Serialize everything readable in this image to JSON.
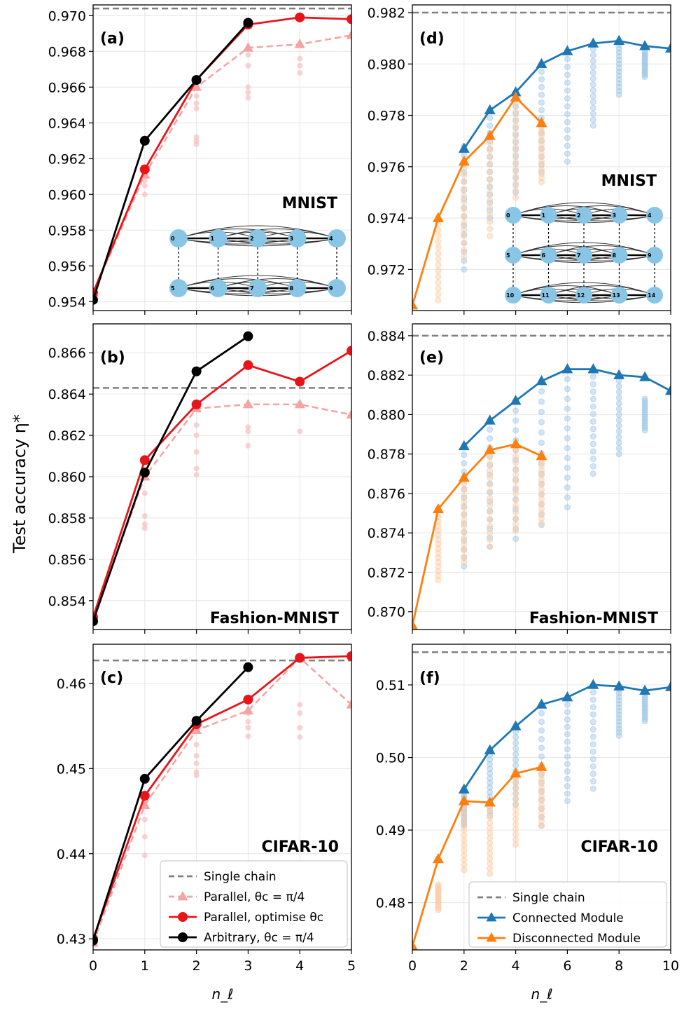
{
  "figure": {
    "ylabel": "Test accuracy η*",
    "xlabel": "n_ℓ"
  },
  "legends": {
    "left": [
      {
        "label": "Single chain",
        "style": "dashed",
        "color": "#808080"
      },
      {
        "label": "Parallel, θc = π/4",
        "style": "dashed-triangle",
        "color": "#f5a3a3"
      },
      {
        "label": "Parallel, optimise θc",
        "style": "solid-circle",
        "color": "#e8141a"
      },
      {
        "label": "Arbitrary, θc = π/4",
        "style": "solid-circle",
        "color": "#000000"
      }
    ],
    "right": [
      {
        "label": "Single chain",
        "style": "dashed",
        "color": "#808080"
      },
      {
        "label": "Connected Module",
        "style": "solid-triangle",
        "color": "#1f77b4"
      },
      {
        "label": "Disconnected Module",
        "style": "solid-triangle",
        "color": "#ff7f0e"
      }
    ]
  },
  "chart_data": [
    {
      "panel": "(a)",
      "dataset": "MNIST",
      "type": "line",
      "xlim": [
        0,
        5
      ],
      "ylim": [
        0.9535,
        0.9706
      ],
      "xticks": [
        0,
        1,
        2,
        3,
        4,
        5
      ],
      "yticks": [
        0.954,
        0.956,
        0.958,
        0.96,
        0.962,
        0.964,
        0.966,
        0.968,
        0.97
      ],
      "ytick_labels": [
        "0.954",
        "0.956",
        "0.958",
        "0.960",
        "0.962",
        "0.964",
        "0.966",
        "0.968",
        "0.970"
      ],
      "single_chain": 0.9704,
      "series": [
        {
          "name": "Parallel, θc = π/4",
          "x": [
            0,
            1,
            2,
            3,
            4,
            5
          ],
          "y": [
            0.9545,
            0.9611,
            0.966,
            0.9682,
            0.9684,
            0.9689
          ]
        },
        {
          "name": "Parallel, optimise θc",
          "x": [
            0,
            1,
            2,
            3,
            4,
            5
          ],
          "y": [
            0.9545,
            0.9614,
            0.9664,
            0.9695,
            0.9699,
            0.9698
          ]
        },
        {
          "name": "Arbitrary, θc = π/4",
          "x": [
            0,
            1,
            2,
            3
          ],
          "y": [
            0.9541,
            0.963,
            0.9664,
            0.9696
          ]
        }
      ],
      "scatter": [
        {
          "x": 1,
          "y": 0.96
        },
        {
          "x": 1,
          "y": 0.9605
        },
        {
          "x": 1,
          "y": 0.9608
        },
        {
          "x": 2,
          "y": 0.9628
        },
        {
          "x": 2,
          "y": 0.963
        },
        {
          "x": 2,
          "y": 0.9632
        },
        {
          "x": 2,
          "y": 0.9648
        },
        {
          "x": 2,
          "y": 0.9651
        },
        {
          "x": 2,
          "y": 0.9655
        },
        {
          "x": 3,
          "y": 0.9654
        },
        {
          "x": 3,
          "y": 0.9657
        },
        {
          "x": 3,
          "y": 0.966
        },
        {
          "x": 3,
          "y": 0.9672
        },
        {
          "x": 3,
          "y": 0.9678
        },
        {
          "x": 4,
          "y": 0.9668
        },
        {
          "x": 4,
          "y": 0.9672
        },
        {
          "x": 4,
          "y": 0.9676
        }
      ],
      "inset": {
        "rows": [
          [
            0,
            1,
            2,
            3,
            4
          ],
          [
            5,
            6,
            7,
            8,
            9
          ]
        ]
      }
    },
    {
      "panel": "(b)",
      "dataset": "Fashion-MNIST",
      "type": "line",
      "xlim": [
        0,
        5
      ],
      "ylim": [
        0.8526,
        0.8674
      ],
      "xticks": [
        0,
        1,
        2,
        3,
        4,
        5
      ],
      "yticks": [
        0.854,
        0.856,
        0.858,
        0.86,
        0.862,
        0.864,
        0.866
      ],
      "ytick_labels": [
        "0.854",
        "0.856",
        "0.858",
        "0.860",
        "0.862",
        "0.864",
        "0.866"
      ],
      "single_chain": 0.8643,
      "series": [
        {
          "name": "Parallel, θc = π/4",
          "x": [
            0,
            1,
            2,
            3,
            4,
            5
          ],
          "y": [
            0.8531,
            0.86,
            0.8633,
            0.8635,
            0.8635,
            0.863
          ]
        },
        {
          "name": "Parallel, optimise θc",
          "x": [
            0,
            1,
            2,
            3,
            4,
            5
          ],
          "y": [
            0.8532,
            0.8608,
            0.8635,
            0.8654,
            0.8646,
            0.8661
          ]
        },
        {
          "name": "Arbitrary, θc = π/4",
          "x": [
            0,
            1,
            2,
            3
          ],
          "y": [
            0.853,
            0.8602,
            0.8651,
            0.8668
          ]
        }
      ],
      "scatter": [
        {
          "x": 1,
          "y": 0.8575
        },
        {
          "x": 1,
          "y": 0.8577
        },
        {
          "x": 1,
          "y": 0.8581
        },
        {
          "x": 1,
          "y": 0.8592
        },
        {
          "x": 2,
          "y": 0.8601
        },
        {
          "x": 2,
          "y": 0.8604
        },
        {
          "x": 2,
          "y": 0.8612
        },
        {
          "x": 2,
          "y": 0.862
        },
        {
          "x": 2,
          "y": 0.8625
        },
        {
          "x": 3,
          "y": 0.8615
        },
        {
          "x": 3,
          "y": 0.8622
        },
        {
          "x": 3,
          "y": 0.8624
        },
        {
          "x": 4,
          "y": 0.8622
        }
      ]
    },
    {
      "panel": "(c)",
      "dataset": "CIFAR-10",
      "type": "line",
      "xlim": [
        0,
        5
      ],
      "ylim": [
        0.4287,
        0.4646
      ],
      "xticks": [
        0,
        1,
        2,
        3,
        4,
        5
      ],
      "yticks": [
        0.43,
        0.44,
        0.45,
        0.46
      ],
      "ytick_labels": [
        "0.43",
        "0.44",
        "0.45",
        "0.46"
      ],
      "single_chain": 0.4627,
      "series": [
        {
          "name": "Parallel, θc = π/4",
          "x": [
            0,
            1,
            2,
            3,
            4,
            5
          ],
          "y": [
            0.4295,
            0.4457,
            0.4545,
            0.4568,
            0.463,
            0.4575
          ]
        },
        {
          "name": "Parallel, optimise θc",
          "x": [
            0,
            1,
            2,
            3,
            4,
            5
          ],
          "y": [
            0.43,
            0.4468,
            0.4552,
            0.4581,
            0.463,
            0.4632
          ]
        },
        {
          "name": "Arbitrary, θc = π/4",
          "x": [
            0,
            1,
            2,
            3
          ],
          "y": [
            0.4298,
            0.4488,
            0.4556,
            0.4619
          ]
        }
      ],
      "scatter": [
        {
          "x": 1,
          "y": 0.4398
        },
        {
          "x": 1,
          "y": 0.442
        },
        {
          "x": 1,
          "y": 0.444
        },
        {
          "x": 2,
          "y": 0.4492
        },
        {
          "x": 2,
          "y": 0.4496
        },
        {
          "x": 2,
          "y": 0.4506
        },
        {
          "x": 2,
          "y": 0.4515
        },
        {
          "x": 2,
          "y": 0.4528
        },
        {
          "x": 3,
          "y": 0.4538
        },
        {
          "x": 3,
          "y": 0.4548
        },
        {
          "x": 3,
          "y": 0.4555
        },
        {
          "x": 3,
          "y": 0.4565
        },
        {
          "x": 4,
          "y": 0.4537
        },
        {
          "x": 4,
          "y": 0.4548
        },
        {
          "x": 4,
          "y": 0.4565
        },
        {
          "x": 4,
          "y": 0.4575
        }
      ]
    },
    {
      "panel": "(d)",
      "dataset": "MNIST",
      "type": "line",
      "xlim": [
        0,
        10
      ],
      "ylim": [
        0.9704,
        0.9823
      ],
      "xticks": [
        0,
        2,
        4,
        6,
        8,
        10
      ],
      "yticks": [
        0.972,
        0.974,
        0.976,
        0.978,
        0.98,
        0.982
      ],
      "ytick_labels": [
        "0.972",
        "0.974",
        "0.976",
        "0.978",
        "0.980",
        "0.982"
      ],
      "single_chain": 0.982,
      "series": [
        {
          "name": "Connected Module",
          "x": [
            2,
            3,
            4,
            5,
            6,
            7,
            8,
            9,
            10
          ],
          "y": [
            0.9767,
            0.9782,
            0.9789,
            0.98,
            0.9805,
            0.9808,
            0.9809,
            0.9807,
            0.9806
          ]
        },
        {
          "name": "Disconnected Module",
          "x": [
            0,
            1,
            2,
            3,
            4,
            5
          ],
          "y": [
            0.9706,
            0.974,
            0.9762,
            0.9772,
            0.9787,
            0.9777
          ]
        }
      ],
      "scatter_connected": [
        {
          "x": 2,
          "ymin": 0.972,
          "ymax": 0.9768
        },
        {
          "x": 3,
          "ymin": 0.974,
          "ymax": 0.9782
        },
        {
          "x": 4,
          "ymin": 0.975,
          "ymax": 0.9789
        },
        {
          "x": 5,
          "ymin": 0.9758,
          "ymax": 0.98
        },
        {
          "x": 6,
          "ymin": 0.9762,
          "ymax": 0.9805
        },
        {
          "x": 7,
          "ymin": 0.9776,
          "ymax": 0.9808
        },
        {
          "x": 8,
          "ymin": 0.9788,
          "ymax": 0.9809
        },
        {
          "x": 9,
          "ymin": 0.9795,
          "ymax": 0.9805
        }
      ],
      "scatter_disconnected": [
        {
          "x": 1,
          "ymin": 0.9708,
          "ymax": 0.974
        },
        {
          "x": 2,
          "ymin": 0.9725,
          "ymax": 0.9762
        },
        {
          "x": 3,
          "ymin": 0.9733,
          "ymax": 0.9772
        },
        {
          "x": 4,
          "ymin": 0.9748,
          "ymax": 0.9787
        },
        {
          "x": 5,
          "ymin": 0.9754,
          "ymax": 0.9777
        }
      ],
      "inset": {
        "rows": [
          [
            0,
            1,
            2,
            3,
            4
          ],
          [
            5,
            6,
            7,
            8,
            9
          ],
          [
            10,
            11,
            12,
            13,
            14
          ]
        ]
      }
    },
    {
      "panel": "(e)",
      "dataset": "Fashion-MNIST",
      "type": "line",
      "xlim": [
        0,
        10
      ],
      "ylim": [
        0.8691,
        0.8846
      ],
      "xticks": [
        0,
        2,
        4,
        6,
        8,
        10
      ],
      "yticks": [
        0.87,
        0.872,
        0.874,
        0.876,
        0.878,
        0.88,
        0.882,
        0.884
      ],
      "ytick_labels": [
        "0.870",
        "0.872",
        "0.874",
        "0.876",
        "0.878",
        "0.880",
        "0.882",
        "0.884"
      ],
      "single_chain": 0.884,
      "series": [
        {
          "name": "Connected Module",
          "x": [
            2,
            3,
            4,
            5,
            6,
            7,
            8,
            9,
            10
          ],
          "y": [
            0.8784,
            0.8797,
            0.8807,
            0.8817,
            0.8823,
            0.8823,
            0.882,
            0.8819,
            0.8812
          ]
        },
        {
          "name": "Disconnected Module",
          "x": [
            0,
            1,
            2,
            3,
            4,
            5
          ],
          "y": [
            0.8693,
            0.8752,
            0.8768,
            0.8782,
            0.8785,
            0.8779
          ]
        }
      ],
      "scatter_connected": [
        {
          "x": 2,
          "ymin": 0.8723,
          "ymax": 0.8784
        },
        {
          "x": 3,
          "ymin": 0.8733,
          "ymax": 0.8797
        },
        {
          "x": 4,
          "ymin": 0.8737,
          "ymax": 0.8807
        },
        {
          "x": 5,
          "ymin": 0.8744,
          "ymax": 0.8817
        },
        {
          "x": 6,
          "ymin": 0.8753,
          "ymax": 0.8823
        },
        {
          "x": 7,
          "ymin": 0.877,
          "ymax": 0.8823
        },
        {
          "x": 8,
          "ymin": 0.878,
          "ymax": 0.882
        },
        {
          "x": 9,
          "ymin": 0.8792,
          "ymax": 0.8808
        }
      ],
      "scatter_disconnected": [
        {
          "x": 1,
          "ymin": 0.8716,
          "ymax": 0.8748
        },
        {
          "x": 2,
          "ymin": 0.8725,
          "ymax": 0.8768
        },
        {
          "x": 3,
          "ymin": 0.8733,
          "ymax": 0.8782
        },
        {
          "x": 4,
          "ymin": 0.8741,
          "ymax": 0.8785
        },
        {
          "x": 5,
          "ymin": 0.8745,
          "ymax": 0.8779
        }
      ]
    },
    {
      "panel": "(f)",
      "dataset": "CIFAR-10",
      "type": "line",
      "xlim": [
        0,
        10
      ],
      "ylim": [
        0.4735,
        0.5156
      ],
      "xticks": [
        0,
        2,
        4,
        6,
        8,
        10
      ],
      "yticks": [
        0.48,
        0.49,
        0.5,
        0.51
      ],
      "ytick_labels": [
        "0.48",
        "0.49",
        "0.50",
        "0.51"
      ],
      "single_chain": 0.5145,
      "series": [
        {
          "name": "Connected Module",
          "x": [
            2,
            3,
            4,
            5,
            6,
            7,
            8,
            9,
            10
          ],
          "y": [
            0.4956,
            0.501,
            0.5043,
            0.5073,
            0.5083,
            0.51,
            0.5098,
            0.5092,
            0.5097
          ]
        },
        {
          "name": "Disconnected Module",
          "x": [
            0,
            1,
            2,
            3,
            4,
            5
          ],
          "y": [
            0.474,
            0.486,
            0.494,
            0.4938,
            0.4978,
            0.4987
          ]
        }
      ],
      "scatter_connected": [
        {
          "x": 2,
          "ymin": 0.4906,
          "ymax": 0.4956
        },
        {
          "x": 3,
          "ymin": 0.492,
          "ymax": 0.501
        },
        {
          "x": 4,
          "ymin": 0.4935,
          "ymax": 0.5043
        },
        {
          "x": 5,
          "ymin": 0.4906,
          "ymax": 0.5073
        },
        {
          "x": 6,
          "ymin": 0.494,
          "ymax": 0.5083
        },
        {
          "x": 7,
          "ymin": 0.4957,
          "ymax": 0.51
        },
        {
          "x": 8,
          "ymin": 0.503,
          "ymax": 0.5098
        },
        {
          "x": 9,
          "ymin": 0.505,
          "ymax": 0.5092
        }
      ],
      "scatter_disconnected": [
        {
          "x": 1,
          "ymin": 0.479,
          "ymax": 0.4825
        },
        {
          "x": 2,
          "ymin": 0.4845,
          "ymax": 0.494
        },
        {
          "x": 3,
          "ymin": 0.484,
          "ymax": 0.4938
        },
        {
          "x": 4,
          "ymin": 0.488,
          "ymax": 0.4978
        },
        {
          "x": 5,
          "ymin": 0.4906,
          "ymax": 0.4987
        }
      ]
    }
  ]
}
